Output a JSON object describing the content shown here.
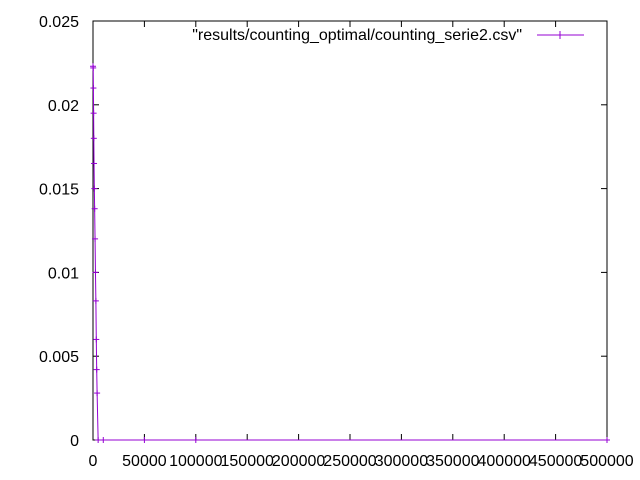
{
  "chart_data": {
    "type": "line",
    "title": "",
    "xlabel": "",
    "ylabel": "",
    "xlim": [
      0,
      500000
    ],
    "ylim": [
      0,
      0.025
    ],
    "x_ticks": [
      0,
      50000,
      100000,
      150000,
      200000,
      250000,
      300000,
      350000,
      400000,
      450000,
      500000
    ],
    "x_tick_labels": [
      "0",
      "50000",
      "100000",
      "150000",
      "200000",
      "250000",
      "300000",
      "350000",
      "400000",
      "450000",
      "500000"
    ],
    "y_ticks": [
      0,
      0.005,
      0.01,
      0.015,
      0.02,
      0.025
    ],
    "y_tick_labels": [
      "0",
      "0.005",
      "0.01",
      "0.015",
      "0.02",
      "0.025"
    ],
    "grid": false,
    "legend_position": "top-right",
    "series": [
      {
        "name": "\"results/counting_optimal/counting_serie2.csv\"",
        "color": "#9400d3",
        "x": [
          0,
          200,
          400,
          600,
          800,
          1000,
          1300,
          1600,
          2000,
          2400,
          2800,
          3200,
          3600,
          4000,
          5000,
          10000,
          50000,
          100000,
          500000
        ],
        "y": [
          0.0223,
          0.0222,
          0.021,
          0.0195,
          0.018,
          0.0165,
          0.015,
          0.0138,
          0.012,
          0.01,
          0.0083,
          0.006,
          0.0042,
          0.0028,
          0.0,
          0.0,
          0.0,
          0.0,
          0.0
        ]
      }
    ]
  }
}
